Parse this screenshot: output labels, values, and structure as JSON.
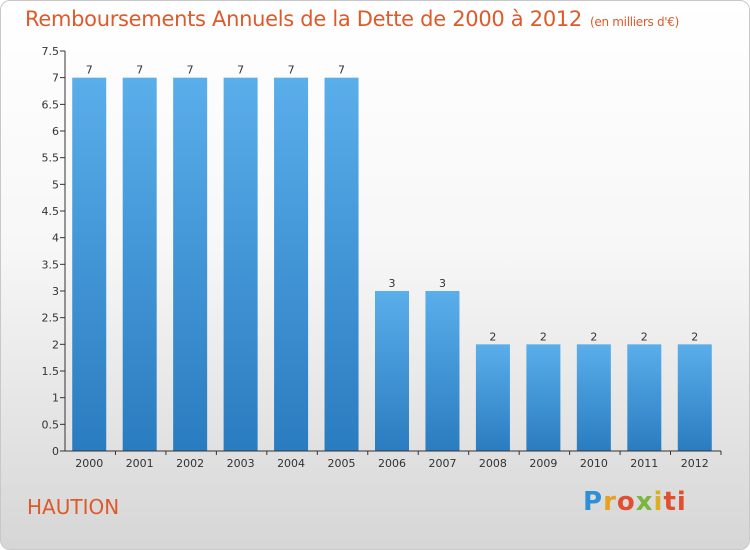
{
  "header": {
    "title": "Remboursements Annuels de la Dette de 2000 à 2012",
    "unit": "(en milliers d'€)"
  },
  "footer": {
    "place": "HAUTION",
    "logo": [
      "P",
      "r",
      "o",
      "x",
      "i",
      "ti"
    ]
  },
  "chart_data": {
    "type": "bar",
    "categories": [
      "2000",
      "2001",
      "2002",
      "2003",
      "2004",
      "2005",
      "2006",
      "2007",
      "2008",
      "2009",
      "2010",
      "2011",
      "2012"
    ],
    "values": [
      7,
      7,
      7,
      7,
      7,
      7,
      3,
      3,
      2,
      2,
      2,
      2,
      2
    ],
    "data_labels": [
      "7",
      "7",
      "7",
      "7",
      "7",
      "7",
      "3",
      "3",
      "2",
      "2",
      "2",
      "2",
      "2"
    ],
    "y_ticks": [
      "0",
      "0.5",
      "1",
      "1.5",
      "2",
      "2.5",
      "3",
      "3.5",
      "4",
      "4.5",
      "5",
      "5.5",
      "6",
      "6.5",
      "7",
      "7.5"
    ],
    "ylim": [
      0,
      7.5
    ],
    "xlabel": "",
    "ylabel": "",
    "grid": false,
    "colors": {
      "bar_top": "#5aaeea",
      "bar_bottom": "#2a7cc0",
      "axis": "#333333"
    }
  }
}
